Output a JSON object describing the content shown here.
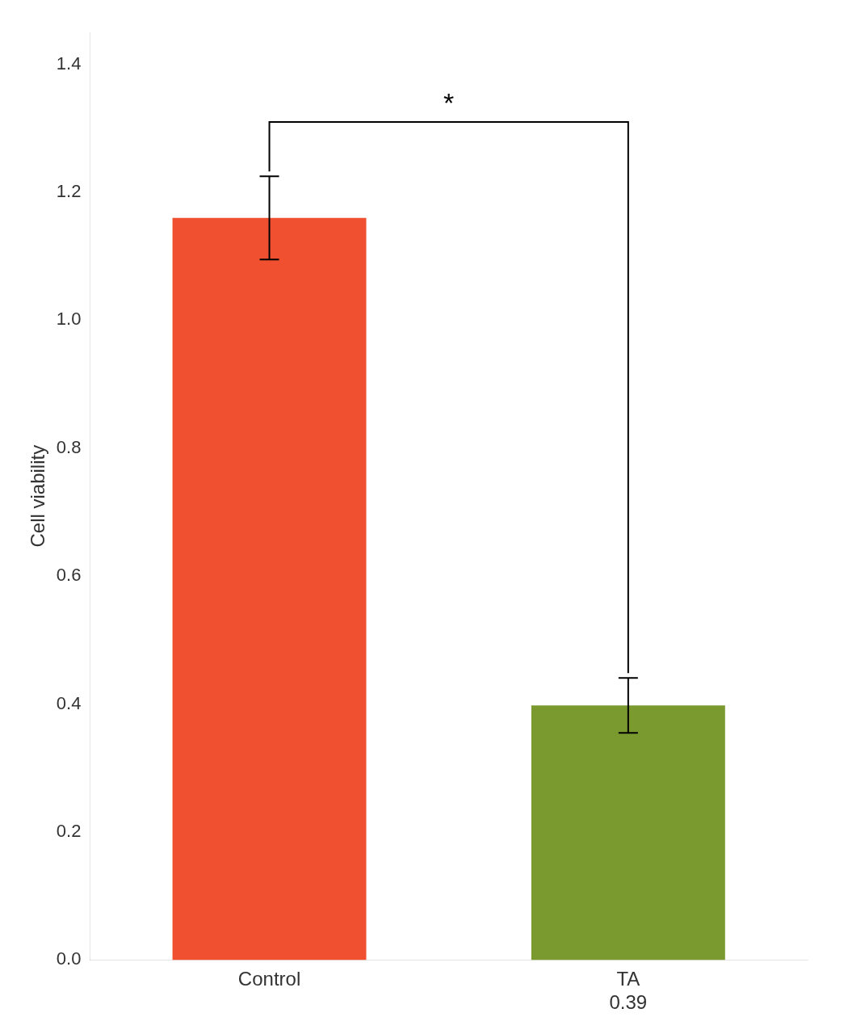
{
  "chart_data": {
    "type": "bar",
    "categories": [
      "Control",
      "TA\n0.39"
    ],
    "values": [
      1.16,
      0.398
    ],
    "errors": [
      0.065,
      0.043
    ],
    "colors": [
      "#f05030",
      "#7a9a30"
    ],
    "ylabel": "Cell viability",
    "ylim": [
      0.0,
      1.45
    ],
    "yticks": [
      {
        "value": 0.0,
        "label": "0.0"
      },
      0.2,
      0.4,
      0.6,
      0.8,
      {
        "value": 1.0,
        "label": "1.0"
      },
      1.2,
      1.4
    ],
    "annotations": [
      {
        "text": "*",
        "y": 1.31,
        "from": "Control",
        "to": "TA\n0.39"
      }
    ],
    "grid": false
  }
}
